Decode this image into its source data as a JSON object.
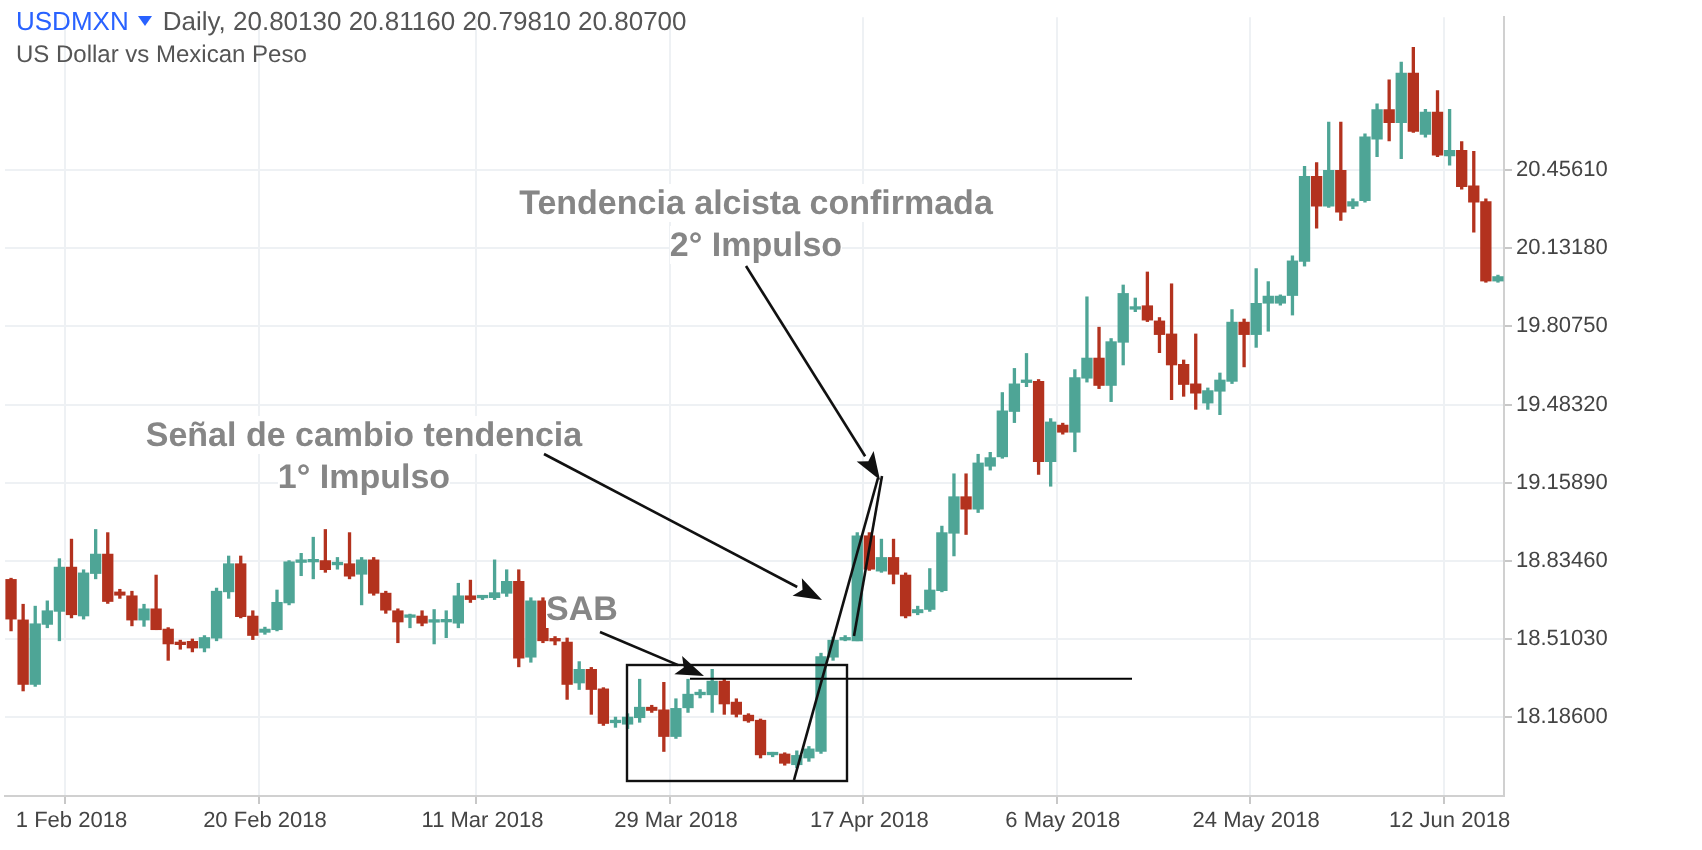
{
  "chart_data": {
    "type": "candlestick",
    "title": "USDMXN",
    "subtitle": "US Dollar vs Mexican Peso",
    "annotations": [
      "Daily, 20.80130 20.81160 20.79810 20.80700",
      "Tendencia alcista confirmada\n2° Impulso",
      "Señal de cambio tendencia\n1° Impulso",
      "SAB"
    ],
    "categories": [
      null,
      null,
      null,
      null,
      null,
      "1 Feb 2018",
      null,
      null,
      null,
      null,
      null,
      null,
      null,
      null,
      null,
      null,
      null,
      null,
      null,
      null,
      null,
      "20 Feb 2018",
      null,
      null,
      null,
      null,
      null,
      null,
      null,
      null,
      null,
      null,
      null,
      null,
      null,
      null,
      null,
      null,
      null,
      "11 Mar 2018",
      null,
      null,
      null,
      null,
      null,
      null,
      null,
      null,
      null,
      null,
      null,
      null,
      null,
      null,
      null,
      "29 Mar 2018",
      null,
      null,
      null,
      null,
      null,
      null,
      null,
      null,
      null,
      null,
      null,
      null,
      null,
      null,
      null,
      "17 Apr 2018",
      null,
      null,
      null,
      null,
      null,
      null,
      null,
      null,
      null,
      null,
      null,
      null,
      null,
      null,
      null,
      "6 May 2018",
      null,
      null,
      null,
      null,
      null,
      null,
      null,
      null,
      null,
      null,
      null,
      null,
      null,
      null,
      null,
      "24 May 2018",
      null,
      null,
      null,
      null,
      null,
      null,
      null,
      null,
      null,
      null,
      null,
      null,
      null,
      null,
      null,
      "12 Jun 2018",
      null,
      null,
      null,
      null
    ],
    "ohlc": [
      [
        18.757,
        18.762,
        18.546,
        18.595
      ],
      [
        18.589,
        18.654,
        18.297,
        18.324
      ],
      [
        18.324,
        18.646,
        18.316,
        18.573
      ],
      [
        18.573,
        18.668,
        18.559,
        18.627
      ],
      [
        18.627,
        18.843,
        18.505,
        18.808
      ],
      [
        18.808,
        18.924,
        18.6,
        18.613
      ],
      [
        18.608,
        18.797,
        18.595,
        18.784
      ],
      [
        18.784,
        18.964,
        18.762,
        18.862
      ],
      [
        18.862,
        18.951,
        18.66,
        18.668
      ],
      [
        18.705,
        18.716,
        18.681,
        18.694
      ],
      [
        18.689,
        18.708,
        18.567,
        18.591
      ],
      [
        18.591,
        18.654,
        18.565,
        18.635
      ],
      [
        18.635,
        18.775,
        18.551,
        18.551
      ],
      [
        18.551,
        18.557,
        18.424,
        18.492
      ],
      [
        18.492,
        18.505,
        18.47,
        18.489
      ],
      [
        18.5,
        18.51,
        18.459,
        18.475
      ],
      [
        18.475,
        18.524,
        18.459,
        18.516
      ],
      [
        18.516,
        18.721,
        18.505,
        18.708
      ],
      [
        18.708,
        18.854,
        18.681,
        18.822
      ],
      [
        18.822,
        18.854,
        18.6,
        18.605
      ],
      [
        18.605,
        18.627,
        18.51,
        18.527
      ],
      [
        18.54,
        18.559,
        18.532,
        18.551
      ],
      [
        18.551,
        18.713,
        18.546,
        18.662
      ],
      [
        18.662,
        18.835,
        18.654,
        18.83
      ],
      [
        18.83,
        18.865,
        18.775,
        18.832
      ],
      [
        18.832,
        18.932,
        18.762,
        18.834
      ],
      [
        18.835,
        18.964,
        18.789,
        18.8
      ],
      [
        18.82,
        18.848,
        18.802,
        18.822
      ],
      [
        18.822,
        18.951,
        18.762,
        18.773
      ],
      [
        18.781,
        18.848,
        18.654,
        18.838
      ],
      [
        18.838,
        18.848,
        18.694,
        18.702
      ],
      [
        18.7,
        18.708,
        18.619,
        18.632
      ],
      [
        18.627,
        18.635,
        18.497,
        18.583
      ],
      [
        18.602,
        18.613,
        18.559,
        18.603
      ],
      [
        18.605,
        18.627,
        18.567,
        18.578
      ],
      [
        18.582,
        18.632,
        18.492,
        18.583
      ],
      [
        18.583,
        18.627,
        18.518,
        18.584
      ],
      [
        18.578,
        18.741,
        18.559,
        18.689
      ],
      [
        18.689,
        18.754,
        18.664,
        18.676
      ],
      [
        18.683,
        18.689,
        18.676,
        18.684
      ],
      [
        18.684,
        18.838,
        18.676,
        18.702
      ],
      [
        18.702,
        18.797,
        18.689,
        18.749
      ],
      [
        18.749,
        18.797,
        18.397,
        18.433
      ],
      [
        18.437,
        18.681,
        18.416,
        18.668
      ],
      [
        18.668,
        18.681,
        18.497,
        18.505
      ],
      [
        18.505,
        18.52,
        18.488,
        18.504
      ],
      [
        18.497,
        18.514,
        18.262,
        18.324
      ],
      [
        18.33,
        18.416,
        18.303,
        18.384
      ],
      [
        18.384,
        18.392,
        18.2,
        18.303
      ],
      [
        18.303,
        18.308,
        18.154,
        18.162
      ],
      [
        18.165,
        18.186,
        18.146,
        18.167
      ],
      [
        18.159,
        18.2,
        18.141,
        18.186
      ],
      [
        18.186,
        18.343,
        18.167,
        18.227
      ],
      [
        18.227,
        18.235,
        18.208,
        18.216
      ],
      [
        18.216,
        18.33,
        18.046,
        18.108
      ],
      [
        18.108,
        18.262,
        18.1,
        18.222
      ],
      [
        18.227,
        18.343,
        18.208,
        18.281
      ],
      [
        18.281,
        18.3,
        18.268,
        18.283
      ],
      [
        18.281,
        18.384,
        18.208,
        18.335
      ],
      [
        18.335,
        18.343,
        18.2,
        18.243
      ],
      [
        18.248,
        18.262,
        18.189,
        18.2
      ],
      [
        18.194,
        18.2,
        18.167,
        18.173
      ],
      [
        18.173,
        18.178,
        18.019,
        18.032
      ],
      [
        18.032,
        18.04,
        18.024,
        18.033
      ],
      [
        18.033,
        18.038,
        17.989,
        17.997
      ],
      [
        17.991,
        18.046,
        17.978,
        18.027
      ],
      [
        18.019,
        18.064,
        18.005,
        18.054
      ],
      [
        18.046,
        18.451,
        18.038,
        18.437
      ],
      [
        18.437,
        18.518,
        18.424,
        18.505
      ],
      [
        18.508,
        18.524,
        18.505,
        18.514
      ],
      [
        18.505,
        18.951,
        18.505,
        18.938
      ],
      [
        18.938,
        18.951,
        18.797,
        18.802
      ],
      [
        18.794,
        18.924,
        18.789,
        18.848
      ],
      [
        18.848,
        18.924,
        18.741,
        18.781
      ],
      [
        18.775,
        18.784,
        18.6,
        18.608
      ],
      [
        18.621,
        18.646,
        18.613,
        18.632
      ],
      [
        18.635,
        18.802,
        18.627,
        18.713
      ],
      [
        18.713,
        18.978,
        18.708,
        18.951
      ],
      [
        18.951,
        19.195,
        18.857,
        19.1
      ],
      [
        19.1,
        19.195,
        18.946,
        19.051
      ],
      [
        19.051,
        19.276,
        19.037,
        19.24
      ],
      [
        19.229,
        19.284,
        19.213,
        19.262
      ],
      [
        19.268,
        19.532,
        19.262,
        19.456
      ],
      [
        19.456,
        19.632,
        19.41,
        19.568
      ],
      [
        19.576,
        19.694,
        19.559,
        19.578
      ],
      [
        19.578,
        19.586,
        19.195,
        19.248
      ],
      [
        19.248,
        19.424,
        19.146,
        19.41
      ],
      [
        19.397,
        19.405,
        19.362,
        19.37
      ],
      [
        19.37,
        19.627,
        19.289,
        19.594
      ],
      [
        19.594,
        19.929,
        19.578,
        19.675
      ],
      [
        19.675,
        19.803,
        19.551,
        19.564
      ],
      [
        19.564,
        19.756,
        19.497,
        19.743
      ],
      [
        19.743,
        19.978,
        19.649,
        19.943
      ],
      [
        19.88,
        19.924,
        19.87,
        19.884
      ],
      [
        19.892,
        20.032,
        19.829,
        19.835
      ],
      [
        19.829,
        19.843,
        19.7,
        19.775
      ],
      [
        19.775,
        19.983,
        19.505,
        19.649
      ],
      [
        19.649,
        19.667,
        19.519,
        19.568
      ],
      [
        19.568,
        19.775,
        19.465,
        19.532
      ],
      [
        19.491,
        19.551,
        19.465,
        19.54
      ],
      [
        19.54,
        19.613,
        19.443,
        19.584
      ],
      [
        19.581,
        19.876,
        19.572,
        19.824
      ],
      [
        19.824,
        19.837,
        19.641,
        19.775
      ],
      [
        19.775,
        20.046,
        19.722,
        19.902
      ],
      [
        19.905,
        19.992,
        19.789,
        19.932
      ],
      [
        19.905,
        19.937,
        19.897,
        19.932
      ],
      [
        19.937,
        20.099,
        19.856,
        20.078
      ],
      [
        20.078,
        20.47,
        20.059,
        20.429
      ],
      [
        20.429,
        20.486,
        20.216,
        20.308
      ],
      [
        20.308,
        20.654,
        20.302,
        20.454
      ],
      [
        20.454,
        20.654,
        20.249,
        20.283
      ],
      [
        20.308,
        20.335,
        20.297,
        20.324
      ],
      [
        20.33,
        20.605,
        20.324,
        20.592
      ],
      [
        20.586,
        20.729,
        20.513,
        20.705
      ],
      [
        20.705,
        20.829,
        20.578,
        20.654
      ],
      [
        20.654,
        20.902,
        20.505,
        20.857
      ],
      [
        20.857,
        20.964,
        20.613,
        20.618
      ],
      [
        20.605,
        20.707,
        20.594,
        20.695
      ],
      [
        20.695,
        20.784,
        20.513,
        20.519
      ],
      [
        20.516,
        20.707,
        20.478,
        20.537
      ],
      [
        20.537,
        20.573,
        20.378,
        20.389
      ],
      [
        20.389,
        20.532,
        20.2,
        20.324
      ],
      [
        20.324,
        20.335,
        19.992,
        19.997
      ],
      [
        19.997,
        20.019,
        19.992,
        20.013
      ]
    ],
    "colors": [
      "#b3321e",
      "#b3321e",
      "#4ea596",
      "#4ea596",
      "#4ea596",
      "#b3321e",
      "#4ea596",
      "#4ea596",
      "#b3321e",
      "#b3321e",
      "#b3321e",
      "#4ea596",
      "#b3321e",
      "#b3321e",
      "#b3321e",
      "#b3321e",
      "#4ea596",
      "#4ea596",
      "#4ea596",
      "#b3321e",
      "#b3321e",
      "#4ea596",
      "#4ea596",
      "#4ea596",
      "#4ea596",
      "#4ea596",
      "#b3321e",
      "#4ea596",
      "#b3321e",
      "#4ea596",
      "#b3321e",
      "#b3321e",
      "#b3321e",
      "#4ea596",
      "#b3321e",
      "#4ea596",
      "#4ea596",
      "#4ea596",
      "#b3321e",
      "#4ea596",
      "#4ea596",
      "#4ea596",
      "#b3321e",
      "#4ea596",
      "#b3321e",
      "#b3321e",
      "#b3321e",
      "#4ea596",
      "#b3321e",
      "#b3321e",
      "#4ea596",
      "#4ea596",
      "#4ea596",
      "#b3321e",
      "#b3321e",
      "#4ea596",
      "#4ea596",
      "#4ea596",
      "#4ea596",
      "#b3321e",
      "#b3321e",
      "#b3321e",
      "#b3321e",
      "#4ea596",
      "#b3321e",
      "#4ea596",
      "#4ea596",
      "#4ea596",
      "#4ea596",
      "#4ea596",
      "#4ea596",
      "#b3321e",
      "#4ea596",
      "#b3321e",
      "#b3321e",
      "#4ea596",
      "#4ea596",
      "#4ea596",
      "#4ea596",
      "#b3321e",
      "#4ea596",
      "#4ea596",
      "#4ea596",
      "#4ea596",
      "#4ea596",
      "#b3321e",
      "#4ea596",
      "#b3321e",
      "#4ea596",
      "#4ea596",
      "#b3321e",
      "#4ea596",
      "#4ea596",
      "#4ea596",
      "#b3321e",
      "#b3321e",
      "#b3321e",
      "#b3321e",
      "#b3321e",
      "#4ea596",
      "#4ea596",
      "#4ea596",
      "#b3321e",
      "#4ea596",
      "#4ea596",
      "#4ea596",
      "#4ea596",
      "#4ea596",
      "#b3321e",
      "#4ea596",
      "#b3321e",
      "#4ea596",
      "#4ea596",
      "#4ea596",
      "#b3321e",
      "#4ea596",
      "#b3321e",
      "#4ea596",
      "#b3321e",
      "#4ea596",
      "#b3321e",
      "#b3321e",
      "#b3321e",
      "#4ea596"
    ],
    "ylim": [
      17.86,
      21.09
    ],
    "yticks": [
      {
        "value": 18.186,
        "label": "18.18600"
      },
      {
        "value": 18.5103,
        "label": "18.51030"
      },
      {
        "value": 18.8346,
        "label": "18.83460"
      },
      {
        "value": 19.1589,
        "label": "19.15890"
      },
      {
        "value": 19.4832,
        "label": "19.48320"
      },
      {
        "value": 19.8075,
        "label": "19.80750"
      },
      {
        "value": 20.1318,
        "label": "20.13180"
      },
      {
        "value": 20.4561,
        "label": "20.45610"
      }
    ],
    "grid": true,
    "ref_lines": [
      {
        "axis": "y",
        "value": 18.346,
        "color": "#000000"
      }
    ]
  }
}
